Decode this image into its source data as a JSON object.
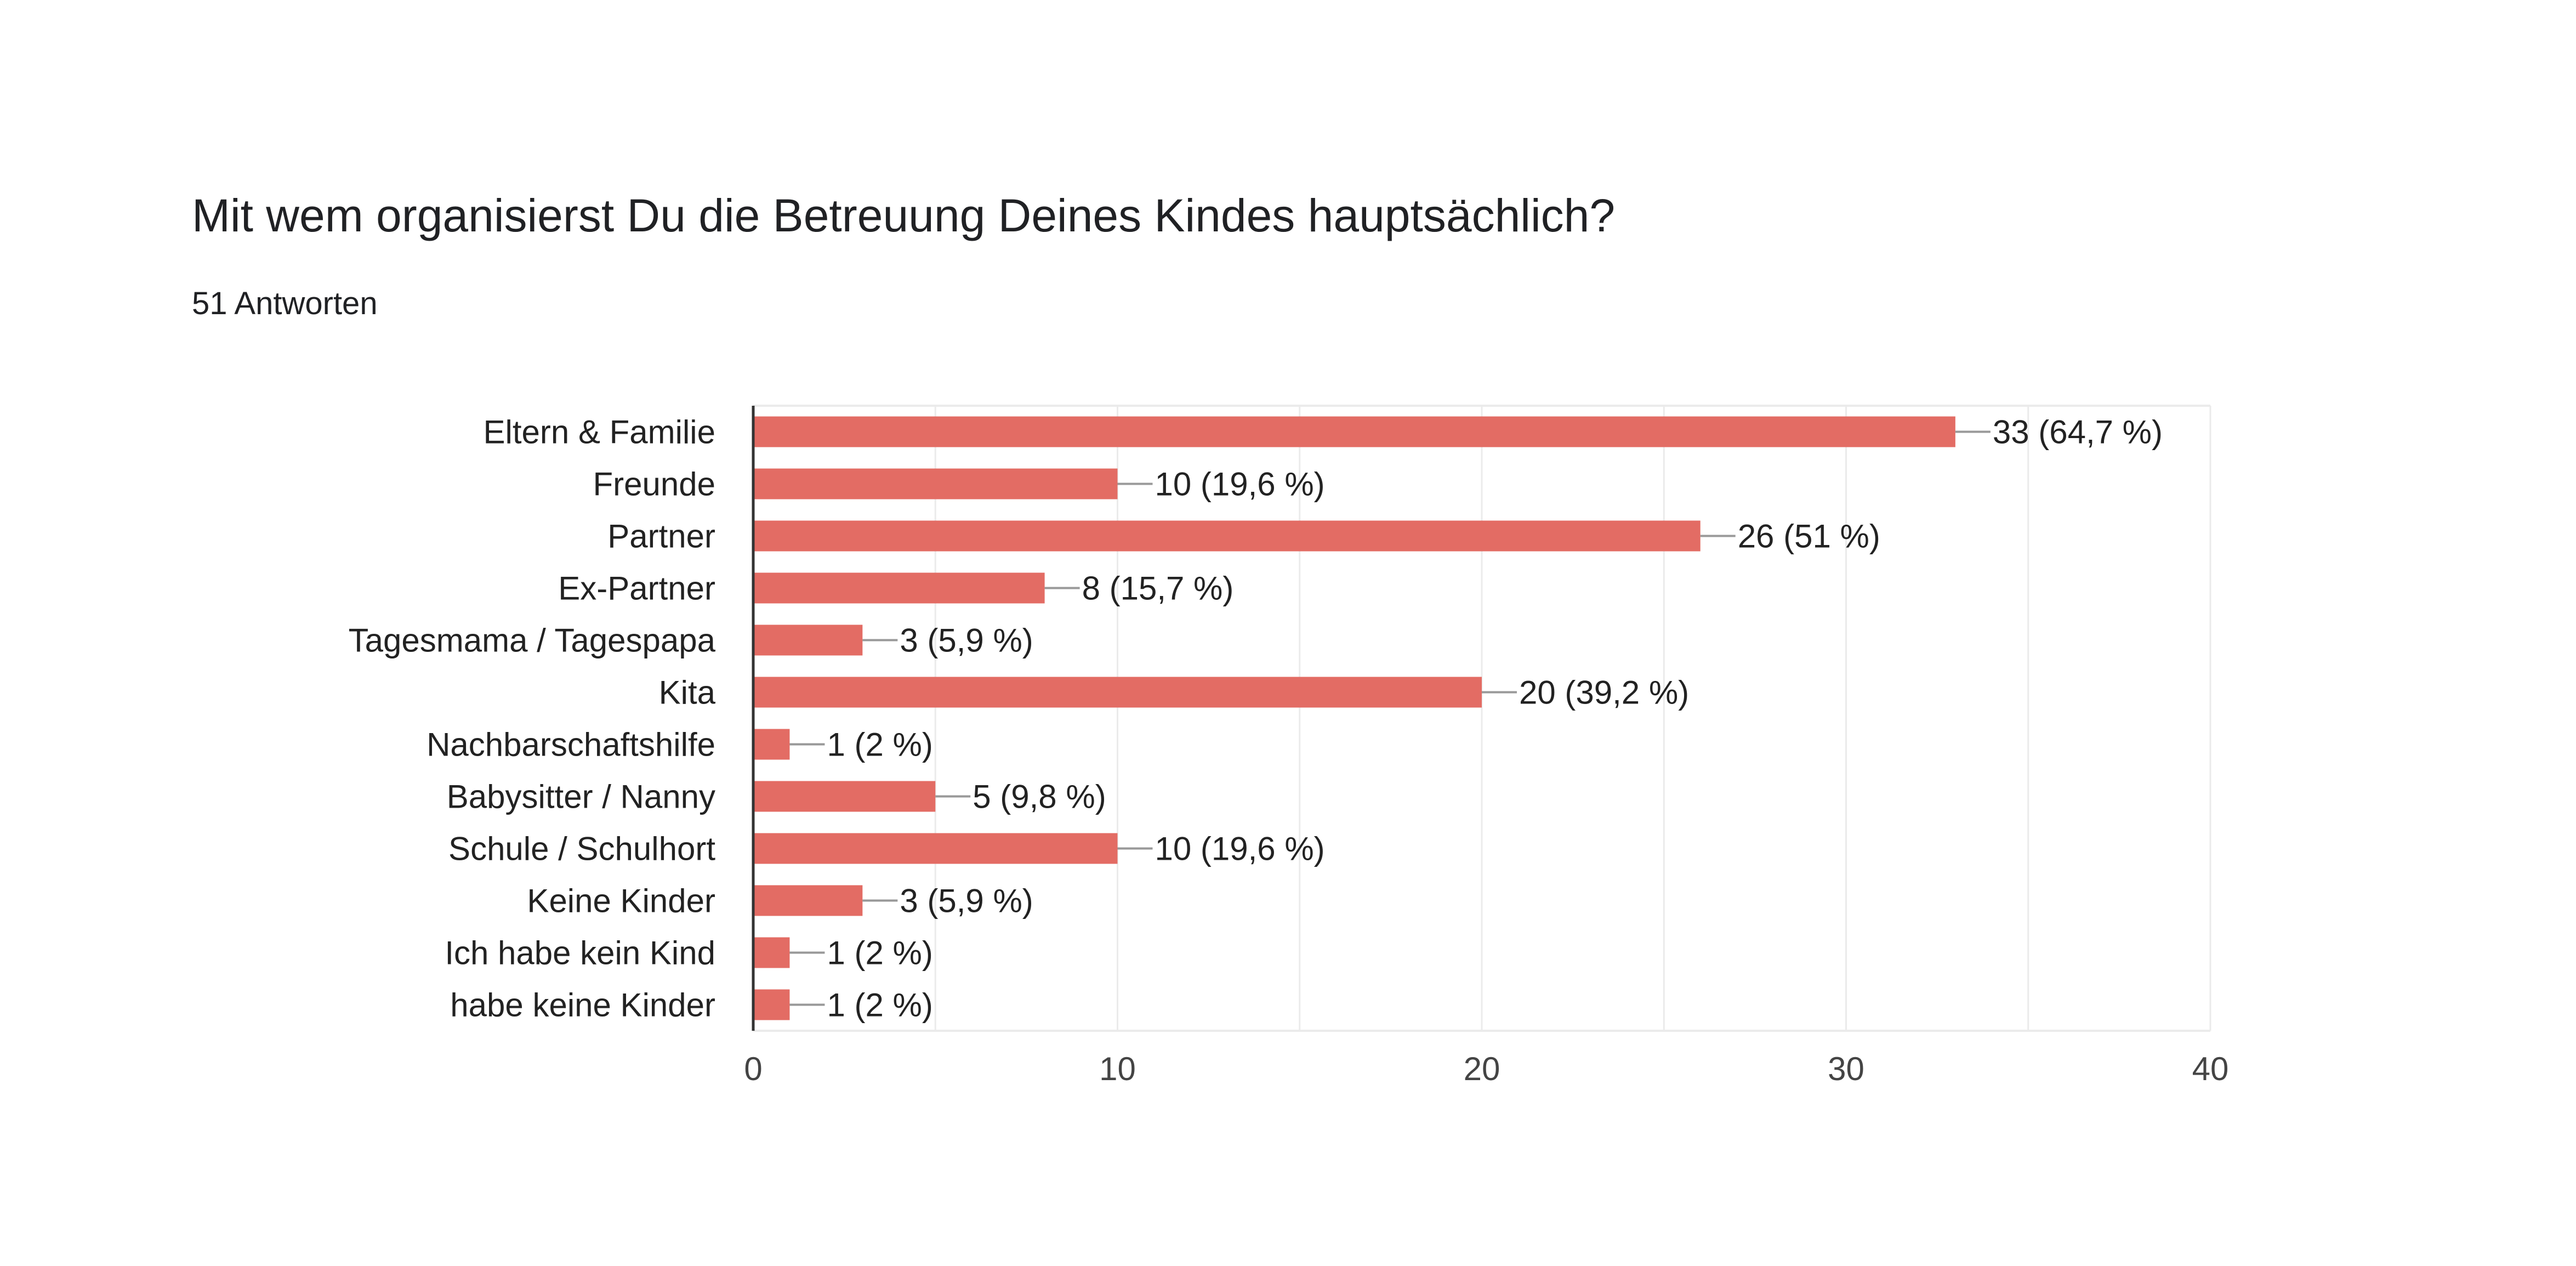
{
  "form": {
    "question": "Mit wem organisierst Du die Betreuung Deines Kindes hauptsächlich?",
    "responses": "51 Antworten"
  },
  "colors": {
    "bar": "#e36c64",
    "grid": "#ebebeb",
    "axis": "#333333",
    "leader": "#999999"
  },
  "chart_data": {
    "type": "bar",
    "orientation": "horizontal",
    "title": "Mit wem organisierst Du die Betreuung Deines Kindes hauptsächlich?",
    "xlabel": "",
    "ylabel": "",
    "xlim": [
      0,
      40
    ],
    "xticks": [
      0,
      10,
      20,
      30,
      40
    ],
    "grid": true,
    "categories": [
      "Eltern & Familie",
      "Freunde",
      "Partner",
      "Ex-Partner",
      "Tagesmama / Tagespapa",
      "Kita",
      "Nachbarschaftshilfe",
      "Babysitter / Nanny",
      "Schule / Schulhort",
      "Keine Kinder",
      "Ich habe kein Kind",
      "habe keine Kinder"
    ],
    "values": [
      33,
      10,
      26,
      8,
      3,
      20,
      1,
      5,
      10,
      3,
      1,
      1
    ],
    "labels": [
      "33 (64,7 %)",
      "10 (19,6 %)",
      "26 (51 %)",
      "8 (15,7 %)",
      "3 (5,9 %)",
      "20 (39,2 %)",
      "1 (2 %)",
      "5 (9,8 %)",
      "10 (19,6 %)",
      "3 (5,9 %)",
      "1 (2 %)",
      "1 (2 %)"
    ]
  }
}
